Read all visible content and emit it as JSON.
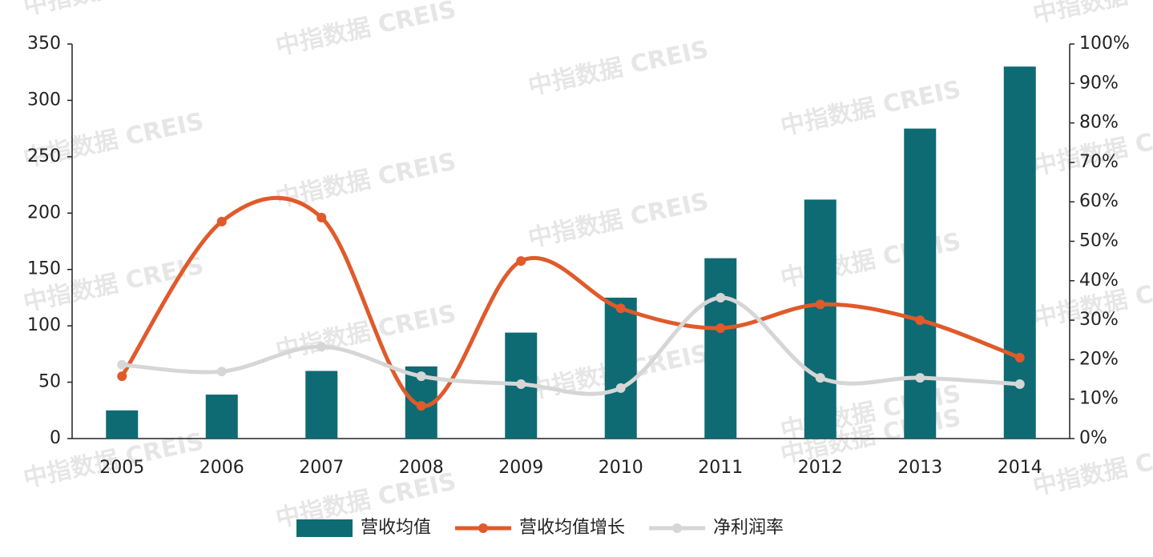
{
  "chart_data": {
    "type": "bar_line",
    "watermark": "中指数据 CREIS",
    "categories": [
      "2005",
      "2006",
      "2007",
      "2008",
      "2009",
      "2010",
      "2011",
      "2012",
      "2013",
      "2014"
    ],
    "series": [
      {
        "name": "营收均值",
        "type": "bar",
        "color": "#0e6b74",
        "values": [
          25,
          39,
          60,
          64,
          94,
          125,
          160,
          212,
          275,
          330
        ]
      },
      {
        "name": "营收均值增长",
        "type": "line",
        "axis": "y2",
        "color": "#e05a2b",
        "values": [
          15.8,
          55,
          56,
          8.3,
          45,
          33,
          28,
          34,
          30,
          20.5
        ]
      },
      {
        "name": "净利润率",
        "type": "line",
        "axis": "y2",
        "color": "#d6d6d6",
        "values": [
          18.7,
          17,
          23.3,
          15.8,
          13.8,
          12.8,
          35.7,
          15.4,
          15.4,
          13.8
        ]
      }
    ],
    "ylim": [
      0,
      350
    ],
    "yticks": [
      0,
      50,
      100,
      150,
      200,
      250,
      300,
      350
    ],
    "y2lim": [
      0,
      100
    ],
    "y2ticks": [
      {
        "value": 0,
        "label": "0%"
      },
      {
        "value": 10,
        "label": "10%"
      },
      {
        "value": 20,
        "label": "20%"
      },
      {
        "value": 30,
        "label": "30%"
      },
      {
        "value": 40,
        "label": "40%"
      },
      {
        "value": 50,
        "label": "50%"
      },
      {
        "value": 60,
        "label": "60%"
      },
      {
        "value": 70,
        "label": "70%"
      },
      {
        "value": 80,
        "label": "80%"
      },
      {
        "value": 90,
        "label": "90%"
      },
      {
        "value": 100,
        "label": "100%"
      }
    ],
    "grid": false,
    "legend": "bottom"
  }
}
